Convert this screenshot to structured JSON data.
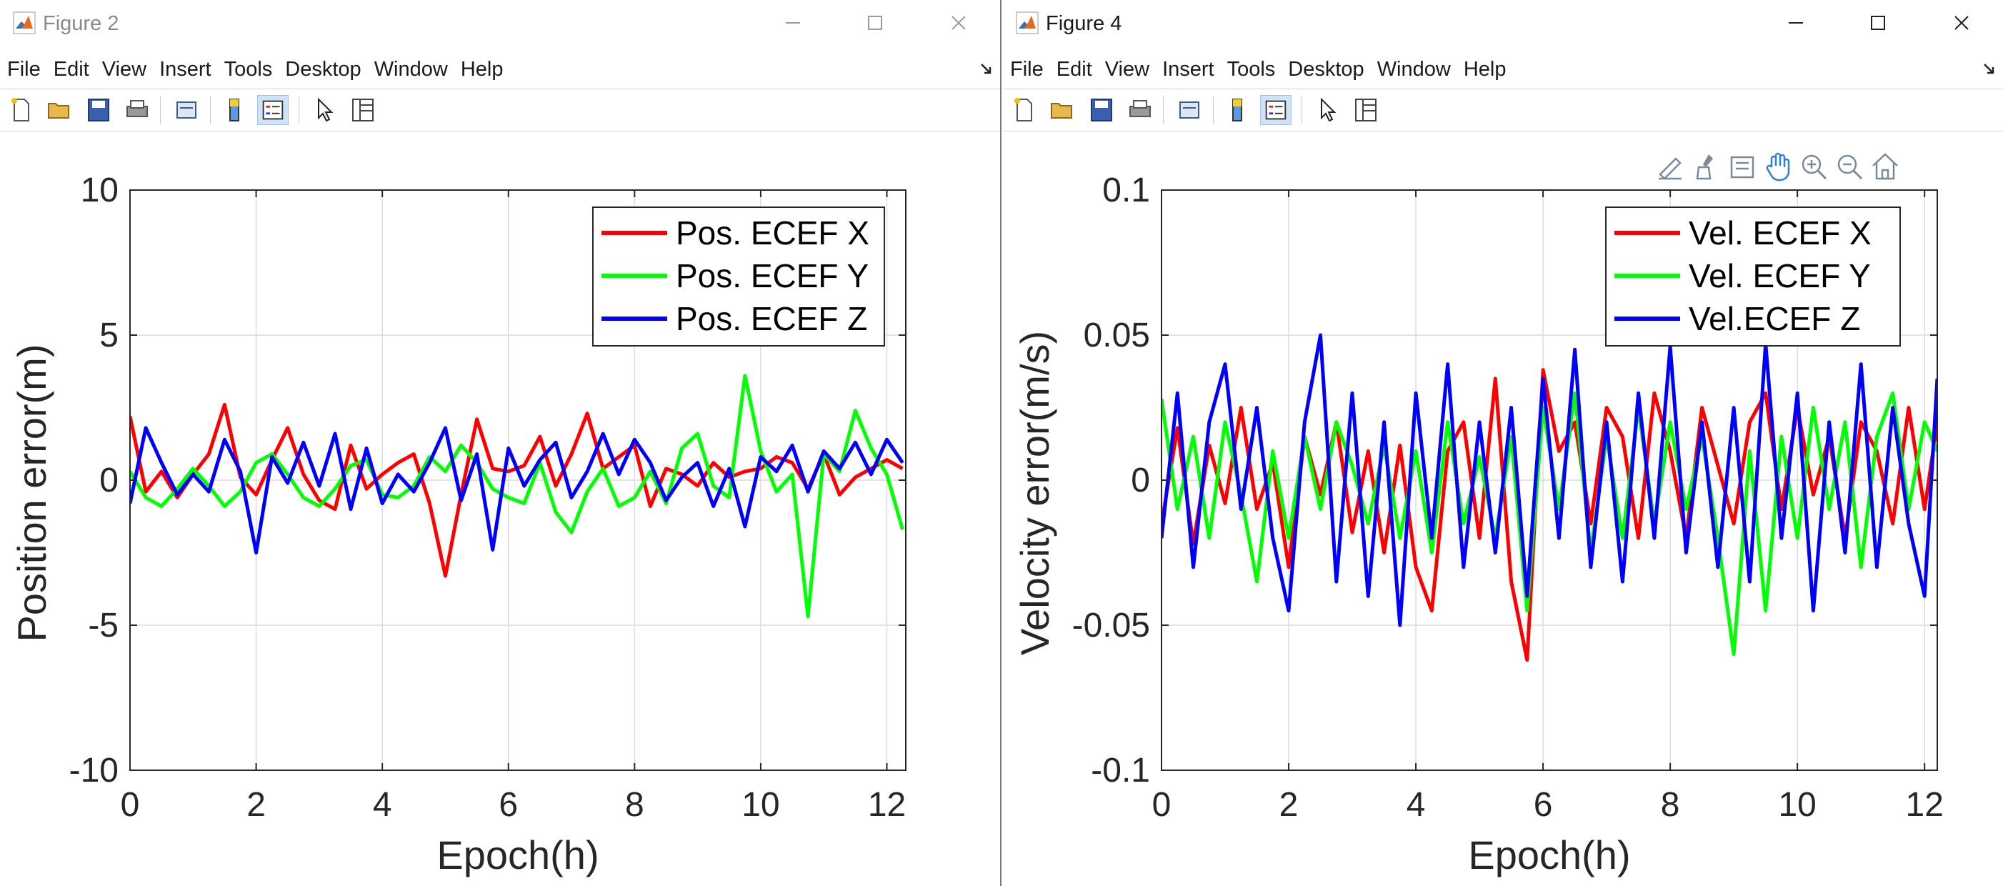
{
  "windows": [
    {
      "title": "Figure 2",
      "menu": [
        "File",
        "Edit",
        "View",
        "Insert",
        "Tools",
        "Desktop",
        "Window",
        "Help"
      ],
      "toolbar_icons": [
        "new-figure-icon",
        "open-file-icon",
        "save-icon",
        "print-icon",
        "print-preview-icon",
        "colorbar-icon",
        "legend-icon",
        "edit-plot-icon",
        "property-inspector-icon"
      ]
    },
    {
      "title": "Figure 4",
      "menu": [
        "File",
        "Edit",
        "View",
        "Insert",
        "Tools",
        "Desktop",
        "Window",
        "Help"
      ],
      "toolbar_icons": [
        "new-figure-icon",
        "open-file-icon",
        "save-icon",
        "print-icon",
        "print-preview-icon",
        "colorbar-icon",
        "legend-icon",
        "edit-plot-icon",
        "property-inspector-icon"
      ],
      "axes_toolbar_icons": [
        "data-tips-icon",
        "brush-icon",
        "export-icon",
        "pan-hand-icon",
        "zoom-in-icon",
        "zoom-out-icon",
        "home-icon"
      ]
    }
  ],
  "colors": {
    "red": "#ff0000",
    "green": "#00ff00",
    "blue": "#0000ff"
  },
  "chart_data": [
    {
      "type": "line",
      "title": "",
      "xlabel": "Epoch(h)",
      "ylabel": "Position error(m)",
      "xlim": [
        0,
        12.3
      ],
      "ylim": [
        -10,
        10
      ],
      "xticks": [
        0,
        2,
        4,
        6,
        8,
        10,
        12
      ],
      "yticks": [
        -10,
        -5,
        0,
        5,
        10
      ],
      "ytick_labels": [
        "-10",
        "-5",
        "0",
        "5",
        "10"
      ],
      "grid": true,
      "legend_position": "top-right",
      "series": [
        {
          "name": "Pos. ECEF X",
          "color": "#ff0000",
          "x": [
            0,
            0.25,
            0.5,
            0.75,
            1,
            1.25,
            1.5,
            1.75,
            2,
            2.25,
            2.5,
            2.75,
            3,
            3.25,
            3.5,
            3.75,
            4,
            4.25,
            4.5,
            4.75,
            5,
            5.25,
            5.5,
            5.75,
            6,
            6.25,
            6.5,
            6.75,
            7,
            7.25,
            7.5,
            7.75,
            8,
            8.25,
            8.5,
            8.75,
            9,
            9.25,
            9.5,
            9.75,
            10,
            10.25,
            10.5,
            10.75,
            11,
            11.25,
            11.5,
            11.75,
            12,
            12.25
          ],
          "y": [
            2.2,
            -0.4,
            0.3,
            -0.6,
            0.2,
            0.9,
            2.6,
            0.1,
            -0.5,
            0.7,
            1.8,
            0.2,
            -0.7,
            -1.0,
            1.2,
            -0.3,
            0.2,
            0.6,
            0.9,
            -0.8,
            -3.3,
            -0.5,
            2.1,
            0.4,
            0.3,
            0.5,
            1.5,
            -0.2,
            0.9,
            2.3,
            0.4,
            0.8,
            1.2,
            -0.9,
            0.4,
            0.2,
            -0.2,
            0.6,
            0.1,
            0.3,
            0.4,
            0.8,
            0.6,
            -0.3,
            0.9,
            -0.5,
            0.1,
            0.4,
            0.7,
            0.4
          ]
        },
        {
          "name": "Pos. ECEF Y",
          "color": "#00ff00",
          "x": [
            0,
            0.25,
            0.5,
            0.75,
            1,
            1.25,
            1.5,
            1.75,
            2,
            2.25,
            2.5,
            2.75,
            3,
            3.25,
            3.5,
            3.75,
            4,
            4.25,
            4.5,
            4.75,
            5,
            5.25,
            5.5,
            5.75,
            6,
            6.25,
            6.5,
            6.75,
            7,
            7.25,
            7.5,
            7.75,
            8,
            8.25,
            8.5,
            8.75,
            9,
            9.25,
            9.5,
            9.75,
            10,
            10.25,
            10.5,
            10.75,
            11,
            11.25,
            11.5,
            11.75,
            12,
            12.25
          ],
          "y": [
            0.3,
            -0.6,
            -0.9,
            -0.3,
            0.4,
            -0.2,
            -0.9,
            -0.4,
            0.6,
            0.9,
            0.2,
            -0.6,
            -0.9,
            -0.3,
            0.5,
            0.7,
            -0.5,
            -0.6,
            -0.2,
            0.8,
            0.3,
            1.2,
            0.6,
            -0.3,
            -0.6,
            -0.8,
            0.6,
            -1.1,
            -1.8,
            -0.4,
            0.4,
            -0.9,
            -0.6,
            0.3,
            -0.8,
            1.1,
            1.6,
            -0.2,
            -0.6,
            3.6,
            1.0,
            -0.4,
            0.2,
            -4.7,
            0.9,
            0.3,
            2.4,
            1.1,
            0.2,
            -1.7
          ]
        },
        {
          "name": "Pos. ECEF Z",
          "color": "#0000ff",
          "x": [
            0,
            0.25,
            0.5,
            0.75,
            1,
            1.25,
            1.5,
            1.75,
            2,
            2.25,
            2.5,
            2.75,
            3,
            3.25,
            3.5,
            3.75,
            4,
            4.25,
            4.5,
            4.75,
            5,
            5.25,
            5.5,
            5.75,
            6,
            6.25,
            6.5,
            6.75,
            7,
            7.25,
            7.5,
            7.75,
            8,
            8.25,
            8.5,
            8.75,
            9,
            9.25,
            9.5,
            9.75,
            10,
            10.25,
            10.5,
            10.75,
            11,
            11.25,
            11.5,
            11.75,
            12,
            12.25
          ],
          "y": [
            -0.8,
            1.8,
            0.6,
            -0.5,
            0.2,
            -0.4,
            1.4,
            0.3,
            -2.5,
            0.8,
            -0.1,
            1.3,
            -0.2,
            1.6,
            -1.0,
            1.1,
            -0.8,
            0.2,
            -0.4,
            0.6,
            1.8,
            -0.7,
            0.9,
            -2.4,
            1.1,
            -0.2,
            0.7,
            1.3,
            -0.6,
            0.3,
            1.6,
            0.2,
            1.4,
            0.6,
            -0.7,
            0.1,
            0.6,
            -0.9,
            0.4,
            -1.6,
            0.8,
            0.3,
            1.2,
            -0.4,
            1.0,
            0.4,
            1.3,
            0.2,
            1.4,
            0.6
          ]
        }
      ]
    },
    {
      "type": "line",
      "title": "",
      "xlabel": "Epoch(h)",
      "ylabel": "Velocity error(m/s)",
      "xlim": [
        0,
        12.2
      ],
      "ylim": [
        -0.1,
        0.1
      ],
      "xticks": [
        0,
        2,
        4,
        6,
        8,
        10,
        12
      ],
      "yticks": [
        -0.1,
        -0.05,
        0,
        0.05,
        0.1
      ],
      "ytick_labels": [
        "-0.1",
        "-0.05",
        "0",
        "0.05",
        "0.1"
      ],
      "grid": true,
      "legend_position": "top-right",
      "series": [
        {
          "name": "Vel. ECEF X",
          "color": "#ff0000",
          "x": [
            0,
            0.25,
            0.5,
            0.75,
            1,
            1.25,
            1.5,
            1.75,
            2,
            2.25,
            2.5,
            2.75,
            3,
            3.25,
            3.5,
            3.75,
            4,
            4.25,
            4.5,
            4.75,
            5,
            5.25,
            5.5,
            5.75,
            6,
            6.25,
            6.5,
            6.75,
            7,
            7.25,
            7.5,
            7.75,
            8,
            8.25,
            8.5,
            8.75,
            9,
            9.25,
            9.5,
            9.75,
            10,
            10.25,
            10.5,
            10.75,
            11,
            11.25,
            11.5,
            11.75,
            12,
            12.2
          ],
          "y": [
            -0.015,
            0.018,
            -0.022,
            0.012,
            -0.008,
            0.025,
            -0.01,
            0.006,
            -0.03,
            0.015,
            -0.005,
            0.02,
            -0.018,
            0.01,
            -0.025,
            0.012,
            -0.03,
            -0.045,
            0.01,
            0.02,
            -0.02,
            0.035,
            -0.035,
            -0.062,
            0.038,
            0.01,
            0.02,
            -0.015,
            0.025,
            0.015,
            -0.02,
            0.03,
            0.01,
            -0.02,
            0.025,
            0.005,
            -0.015,
            0.02,
            0.03,
            -0.01,
            0.025,
            -0.005,
            0.015,
            -0.02,
            0.02,
            0.01,
            -0.015,
            0.025,
            -0.01,
            0.02
          ]
        },
        {
          "name": "Vel. ECEF Y",
          "color": "#00ff00",
          "x": [
            0,
            0.25,
            0.5,
            0.75,
            1,
            1.25,
            1.5,
            1.75,
            2,
            2.25,
            2.5,
            2.75,
            3,
            3.25,
            3.5,
            3.75,
            4,
            4.25,
            4.5,
            4.75,
            5,
            5.25,
            5.5,
            5.75,
            6,
            6.25,
            6.5,
            6.75,
            7,
            7.25,
            7.5,
            7.75,
            8,
            8.25,
            8.5,
            8.75,
            9,
            9.25,
            9.5,
            9.75,
            10,
            10.25,
            10.5,
            10.75,
            11,
            11.25,
            11.5,
            11.75,
            12,
            12.2
          ],
          "y": [
            0.028,
            -0.01,
            0.015,
            -0.02,
            0.02,
            -0.005,
            -0.035,
            0.01,
            -0.02,
            0.015,
            -0.01,
            0.02,
            0.005,
            -0.015,
            0.012,
            -0.02,
            0.01,
            -0.025,
            0.02,
            -0.015,
            0.008,
            -0.02,
            0.015,
            -0.045,
            0.025,
            -0.01,
            0.03,
            -0.025,
            0.015,
            -0.02,
            0.025,
            -0.015,
            0.02,
            -0.01,
            0.015,
            -0.02,
            -0.06,
            0.01,
            -0.045,
            0.015,
            -0.02,
            0.025,
            -0.01,
            0.02,
            -0.03,
            0.015,
            0.03,
            -0.01,
            0.02,
            0.01
          ]
        },
        {
          "name": "Vel.ECEF Z",
          "color": "#0000ff",
          "x": [
            0,
            0.25,
            0.5,
            0.75,
            1,
            1.25,
            1.5,
            1.75,
            2,
            2.25,
            2.5,
            2.75,
            3,
            3.25,
            3.5,
            3.75,
            4,
            4.25,
            4.5,
            4.75,
            5,
            5.25,
            5.5,
            5.75,
            6,
            6.25,
            6.5,
            6.75,
            7,
            7.25,
            7.5,
            7.75,
            8,
            8.25,
            8.5,
            8.75,
            9,
            9.25,
            9.5,
            9.75,
            10,
            10.25,
            10.5,
            10.75,
            11,
            11.25,
            11.5,
            11.75,
            12,
            12.2
          ],
          "y": [
            -0.02,
            0.03,
            -0.03,
            0.02,
            0.04,
            -0.01,
            0.025,
            -0.02,
            -0.045,
            0.02,
            0.05,
            -0.035,
            0.03,
            -0.04,
            0.02,
            -0.05,
            0.03,
            -0.02,
            0.04,
            -0.03,
            0.02,
            -0.025,
            0.025,
            -0.04,
            0.035,
            -0.02,
            0.045,
            -0.03,
            0.02,
            -0.035,
            0.03,
            -0.02,
            0.046,
            -0.025,
            0.02,
            -0.03,
            0.025,
            -0.035,
            0.047,
            -0.02,
            0.03,
            -0.045,
            0.02,
            -0.025,
            0.04,
            -0.03,
            0.025,
            -0.015,
            -0.04,
            0.035
          ]
        }
      ]
    }
  ]
}
